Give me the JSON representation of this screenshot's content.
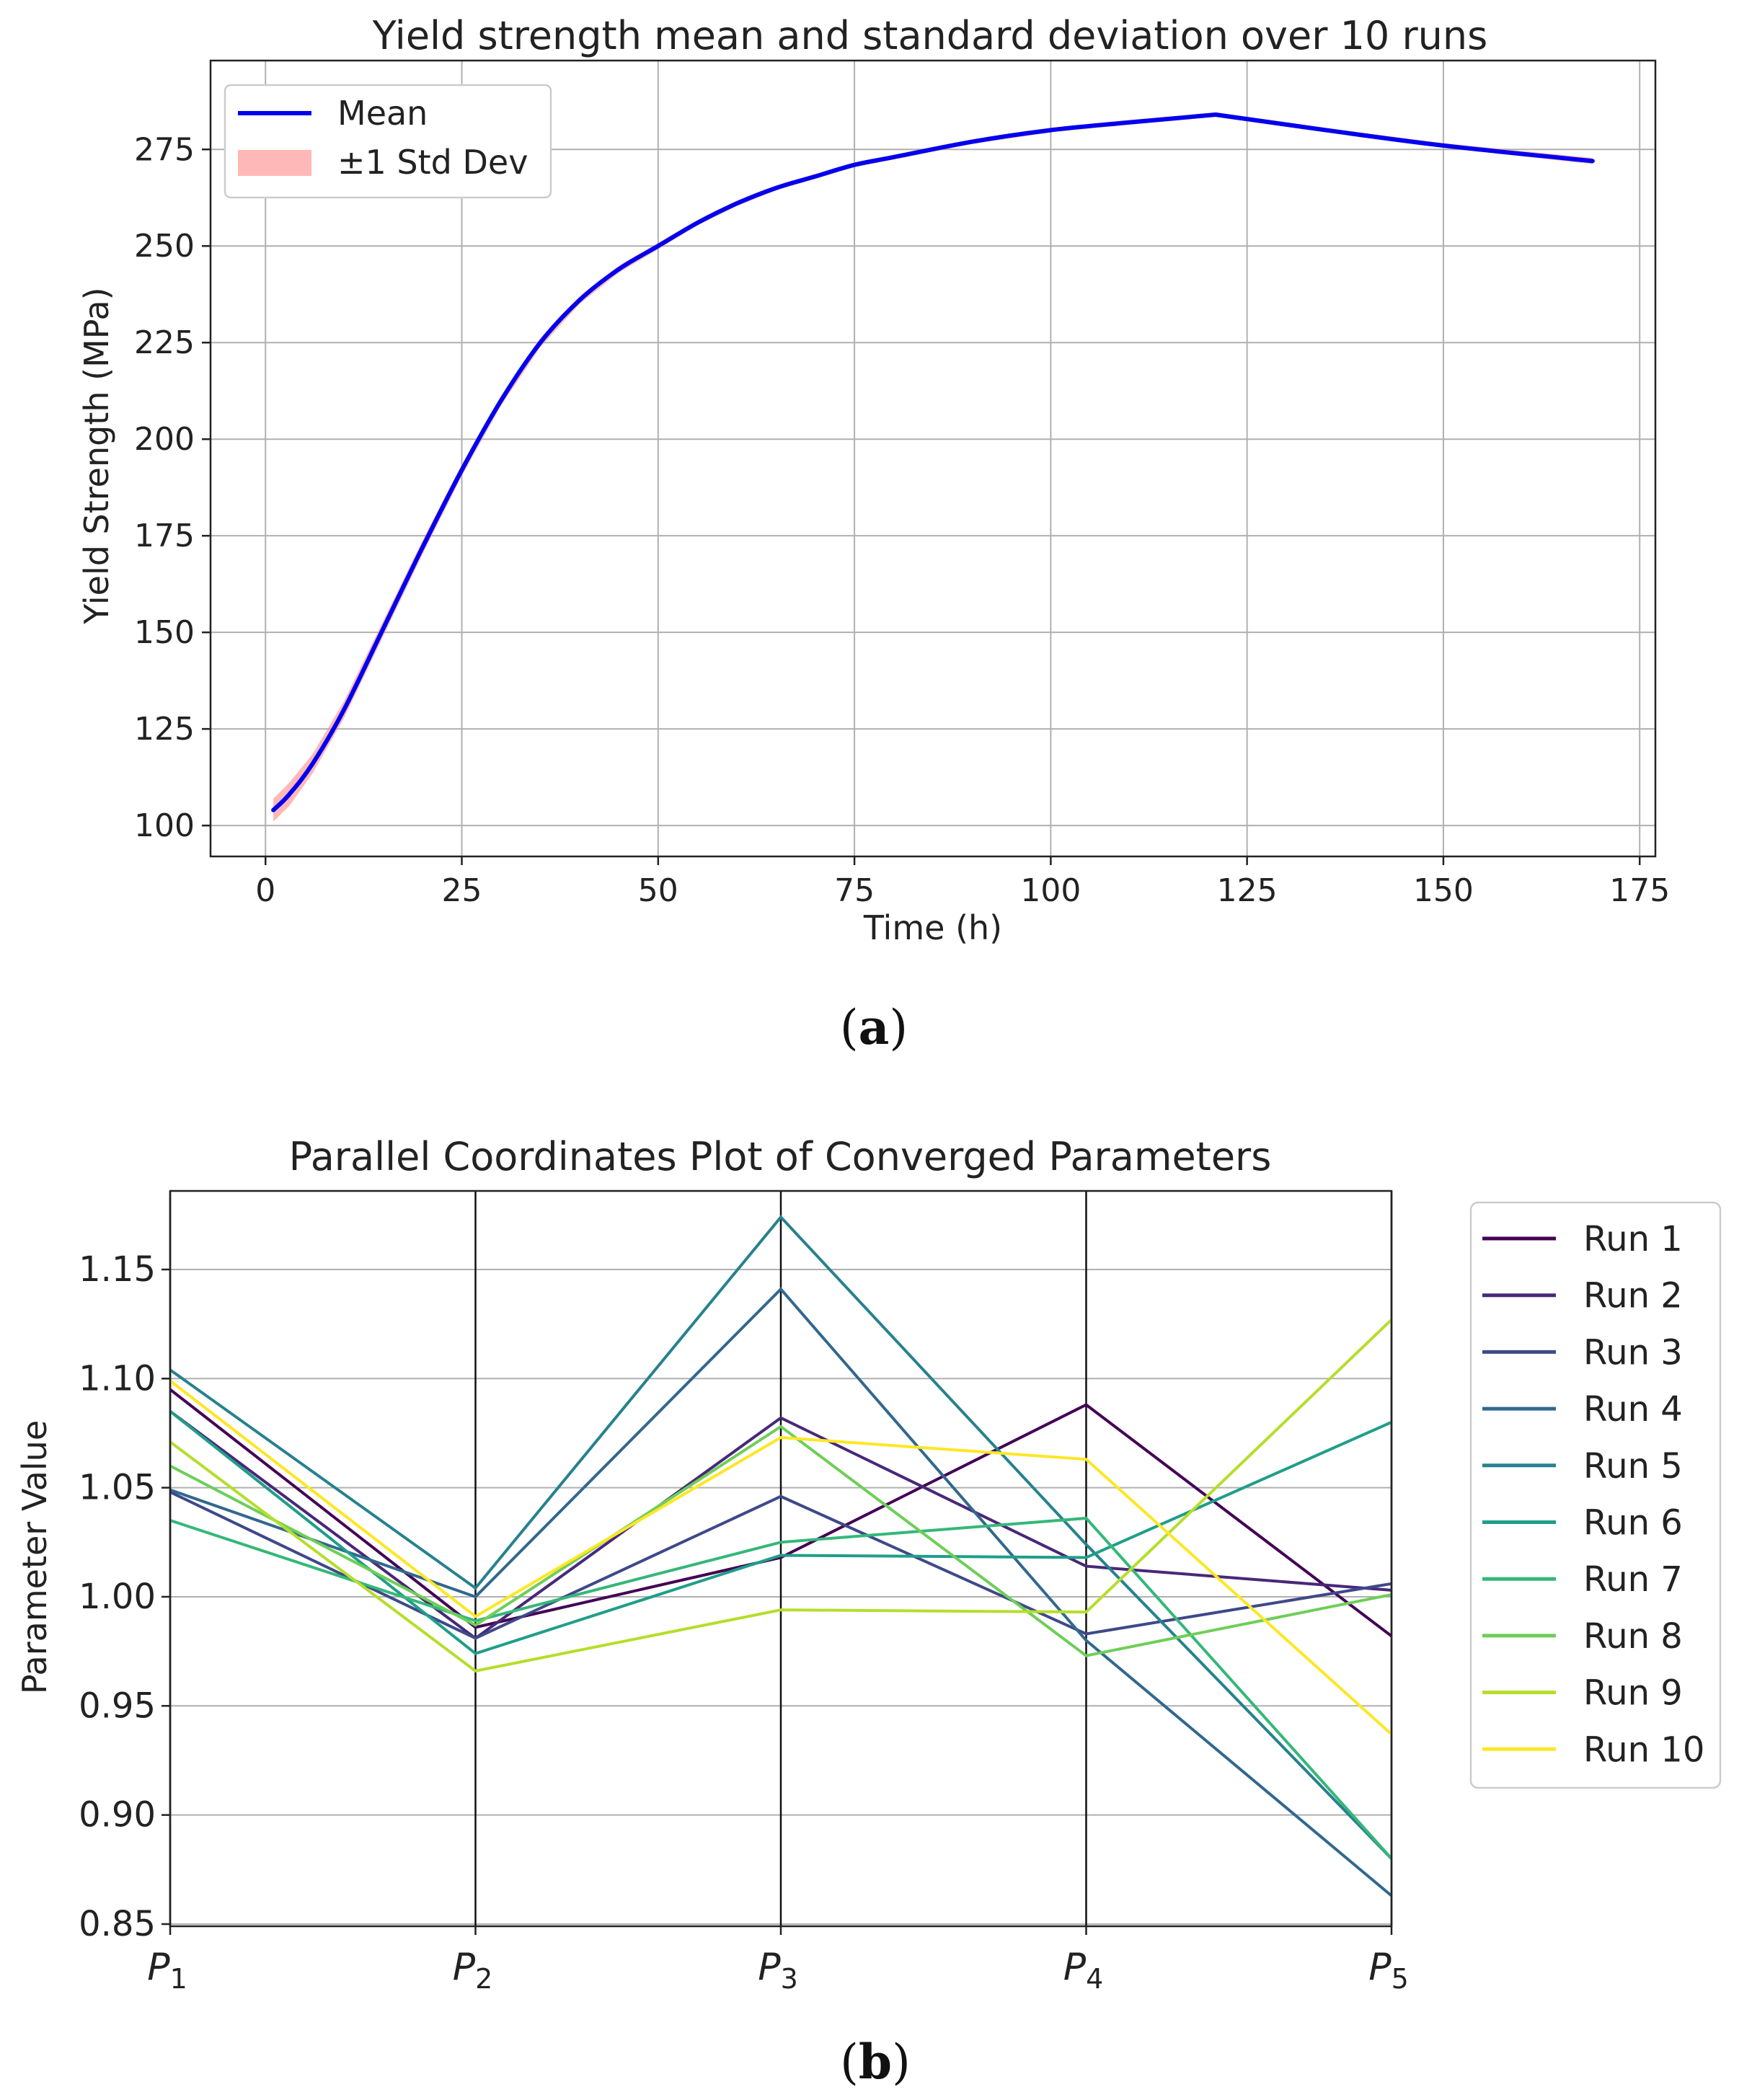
{
  "chart_data": [
    {
      "type": "line",
      "title": "Yield strength mean and standard deviation over 10 runs",
      "xlabel": "Time (h)",
      "ylabel": "Yield Strength (MPa)",
      "xlim": [
        -7,
        177
      ],
      "ylim": [
        92,
        298
      ],
      "xticks": [
        0,
        25,
        50,
        75,
        100,
        125,
        150,
        175
      ],
      "yticks": [
        100,
        125,
        150,
        175,
        200,
        225,
        250,
        275
      ],
      "grid": true,
      "legend_position": "top-left",
      "caption": "(a)",
      "caption_letter": "a",
      "series": [
        {
          "name": "Mean",
          "color": "#0000ee",
          "x": [
            1,
            3,
            6,
            10,
            15,
            20,
            25,
            30,
            35,
            40,
            45,
            50,
            55,
            60,
            65,
            70,
            75,
            80,
            90,
            100,
            110,
            121,
            135,
            150,
            169
          ],
          "values": [
            104,
            108,
            116,
            130,
            151,
            172,
            192,
            210,
            225,
            236,
            244,
            250,
            256,
            261,
            265,
            268,
            271,
            273,
            277,
            280,
            282,
            284,
            280,
            276,
            272
          ]
        }
      ],
      "band": {
        "name": "±1 Std Dev",
        "color": "#ff8888",
        "std": [
          3,
          3,
          2.5,
          2.2,
          2,
          1.8,
          1.5,
          1.3,
          1.2,
          1.0,
          0.9,
          0.8,
          0.7,
          0.7,
          0.6,
          0.6,
          0.6,
          0.6,
          0.6,
          0.6,
          0.6,
          0.6,
          0.6,
          0.6,
          0.8
        ]
      }
    },
    {
      "type": "parallel-coordinates",
      "title": "Parallel Coordinates Plot of Converged Parameters",
      "ylabel": "Parameter Value",
      "ylim": [
        0.849,
        1.186
      ],
      "yticks": [
        0.85,
        0.9,
        0.95,
        1.0,
        1.05,
        1.1,
        1.15
      ],
      "ytick_labels": [
        "0.85",
        "0.90",
        "0.95",
        "1.00",
        "1.05",
        "1.10",
        "1.15"
      ],
      "axes": [
        {
          "base": "P",
          "sub": "1"
        },
        {
          "base": "P",
          "sub": "2"
        },
        {
          "base": "P",
          "sub": "3"
        },
        {
          "base": "P",
          "sub": "4"
        },
        {
          "base": "P",
          "sub": "5"
        }
      ],
      "legend_position": "right",
      "caption": "(b)",
      "caption_letter": "b",
      "series": [
        {
          "name": "Run 1",
          "color": "#440154",
          "values": [
            1.095,
            0.986,
            1.018,
            1.088,
            0.982
          ]
        },
        {
          "name": "Run 2",
          "color": "#482878",
          "values": [
            1.085,
            0.981,
            1.082,
            1.014,
            1.003
          ]
        },
        {
          "name": "Run 3",
          "color": "#3e4989",
          "values": [
            1.048,
            0.981,
            1.046,
            0.983,
            1.006
          ]
        },
        {
          "name": "Run 4",
          "color": "#31688e",
          "values": [
            1.049,
            1.0,
            1.141,
            0.98,
            0.863
          ]
        },
        {
          "name": "Run 5",
          "color": "#26828e",
          "values": [
            1.104,
            1.004,
            1.174,
            1.024,
            0.88
          ]
        },
        {
          "name": "Run 6",
          "color": "#1f9e89",
          "values": [
            1.085,
            0.974,
            1.019,
            1.018,
            1.08
          ]
        },
        {
          "name": "Run 7",
          "color": "#35b779",
          "values": [
            1.035,
            0.989,
            1.025,
            1.036,
            0.88
          ]
        },
        {
          "name": "Run 8",
          "color": "#6ece58",
          "values": [
            1.06,
            0.987,
            1.078,
            0.973,
            1.001
          ]
        },
        {
          "name": "Run 9",
          "color": "#b5de2b",
          "values": [
            1.071,
            0.966,
            0.994,
            0.993,
            1.127
          ]
        },
        {
          "name": "Run 10",
          "color": "#fde725",
          "values": [
            1.099,
            0.991,
            1.073,
            1.063,
            0.937
          ]
        }
      ]
    }
  ]
}
